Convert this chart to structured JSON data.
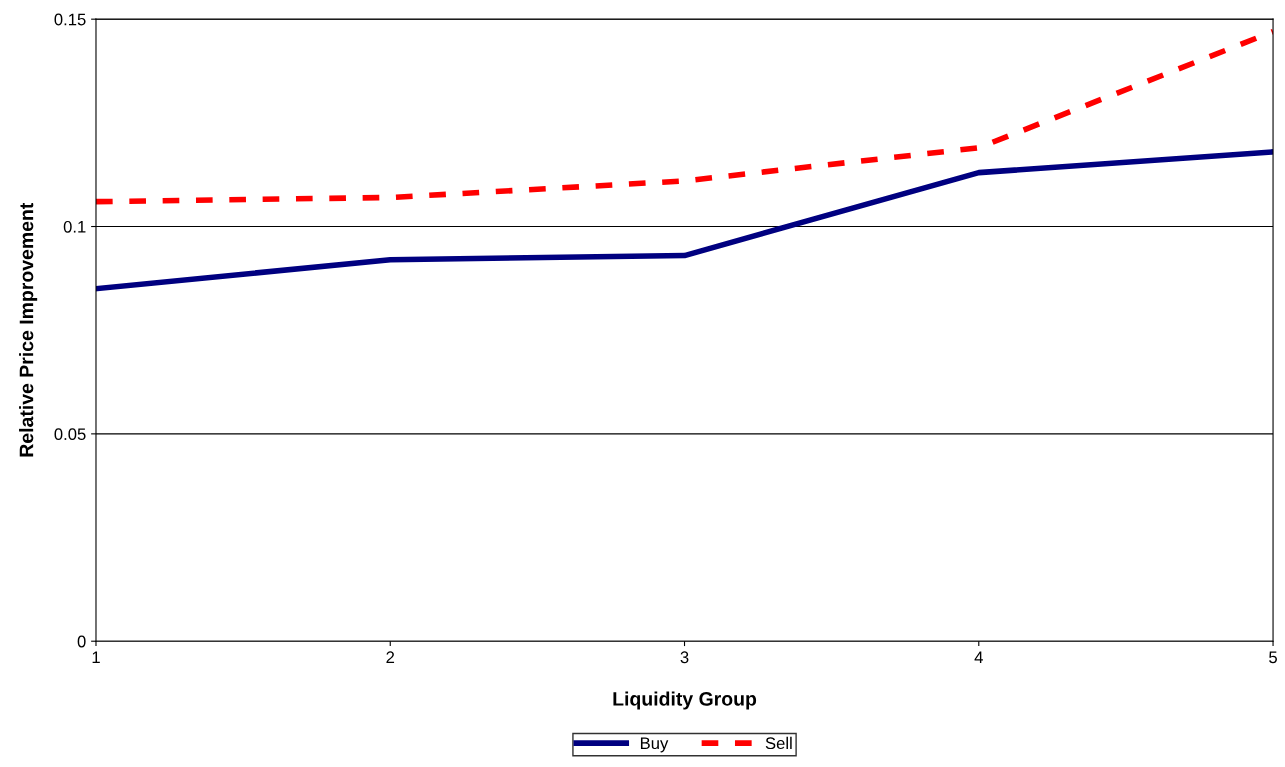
{
  "chart_data": {
    "type": "line",
    "xlabel": "Liquidity Group",
    "ylabel": "Relative Price Improvement",
    "x": [
      1,
      2,
      3,
      4,
      5
    ],
    "series": [
      {
        "name": "Buy",
        "color": "#000080",
        "values": [
          0.085,
          0.092,
          0.093,
          0.113,
          0.118
        ],
        "line_style": "solid"
      },
      {
        "name": "Sell",
        "color": "#ff0000",
        "values": [
          0.106,
          0.107,
          0.111,
          0.119,
          0.147
        ],
        "line_style": "dashed"
      }
    ],
    "xlim": [
      1,
      5
    ],
    "xticks": [
      1,
      2,
      3,
      4,
      5
    ],
    "ylim": [
      0,
      0.15
    ],
    "yticks": [
      0,
      0.05,
      0.1,
      0.15
    ],
    "grid": "y",
    "legend": "bottom",
    "marker": "none"
  }
}
